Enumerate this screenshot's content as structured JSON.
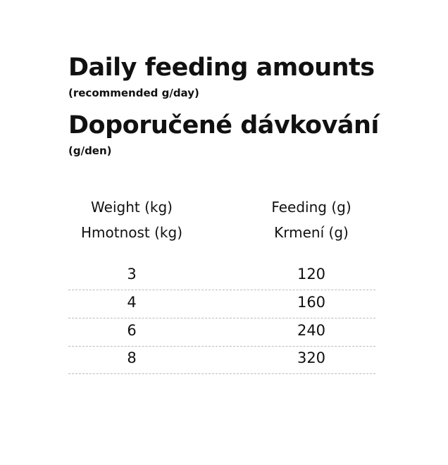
{
  "title_en": "Daily feeding amounts",
  "subtitle_en": "(recommended g/day)",
  "title_cz": "Doporučené dávkování",
  "subtitle_cz": "(g/den)",
  "table": {
    "headers": [
      {
        "en": "Weight (kg)",
        "cz": "Hmotnost (kg)"
      },
      {
        "en": "Feeding (g)",
        "cz": "Krmení (g)"
      }
    ],
    "rows": [
      {
        "weight": "3",
        "feeding": "120"
      },
      {
        "weight": "4",
        "feeding": "160"
      },
      {
        "weight": "6",
        "feeding": "240"
      },
      {
        "weight": "8",
        "feeding": "320"
      }
    ]
  }
}
